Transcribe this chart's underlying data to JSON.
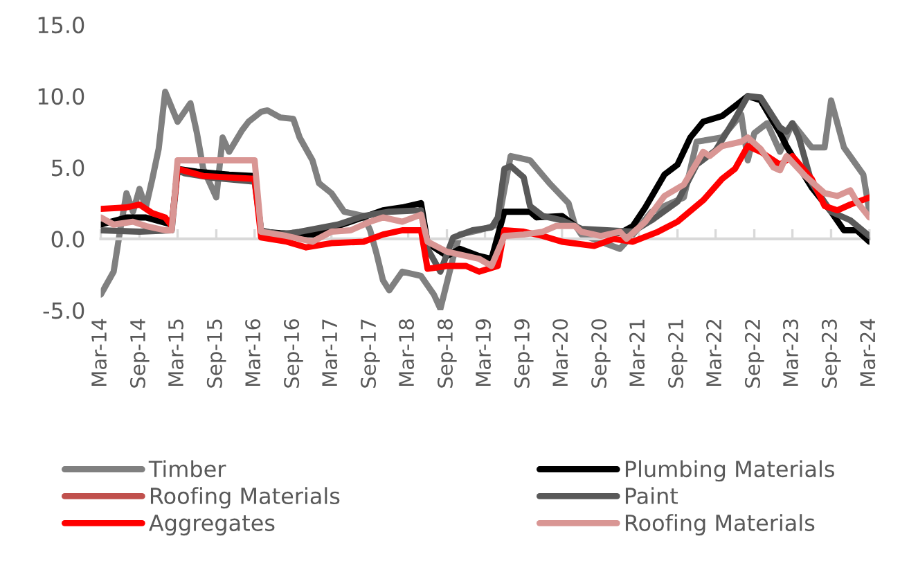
{
  "chart_data": {
    "type": "line",
    "xlim": [
      "2014-03",
      "2024-03"
    ],
    "ylim": [
      -5,
      15
    ],
    "yticks": [
      {
        "value": -5,
        "label": "-5.0"
      },
      {
        "value": 0,
        "label": "0.0"
      },
      {
        "value": 5,
        "label": "5.0"
      },
      {
        "value": 10,
        "label": "10.0"
      },
      {
        "value": 15,
        "label": "15.0"
      }
    ],
    "xticks": [
      {
        "value": "2014-03",
        "label": "Mar-14"
      },
      {
        "value": "2014-09",
        "label": "Sep-14"
      },
      {
        "value": "2015-03",
        "label": "Mar-15"
      },
      {
        "value": "2015-09",
        "label": "Sep-15"
      },
      {
        "value": "2016-03",
        "label": "Mar-16"
      },
      {
        "value": "2016-09",
        "label": "Sep-16"
      },
      {
        "value": "2017-03",
        "label": "Mar-17"
      },
      {
        "value": "2017-09",
        "label": "Sep-17"
      },
      {
        "value": "2018-03",
        "label": "Mar-18"
      },
      {
        "value": "2018-09",
        "label": "Sep-18"
      },
      {
        "value": "2019-03",
        "label": "Mar-19"
      },
      {
        "value": "2019-09",
        "label": "Sep-19"
      },
      {
        "value": "2020-03",
        "label": "Mar-20"
      },
      {
        "value": "2020-09",
        "label": "Sep-20"
      },
      {
        "value": "2021-03",
        "label": "Mar-21"
      },
      {
        "value": "2021-09",
        "label": "Sep-21"
      },
      {
        "value": "2022-03",
        "label": "Mar-22"
      },
      {
        "value": "2022-09",
        "label": "Sep-22"
      },
      {
        "value": "2023-03",
        "label": "Mar-23"
      },
      {
        "value": "2023-09",
        "label": "Sep-23"
      },
      {
        "value": "2024-03",
        "label": "Mar-24"
      }
    ],
    "legend": "bottom",
    "series": [
      {
        "name": "Timber",
        "color": "#808080",
        "x": [
          "2014-03",
          "2014-05",
          "2014-06",
          "2014-07",
          "2014-08",
          "2014-09",
          "2014-10",
          "2014-11",
          "2014-12",
          "2015-01",
          "2015-03",
          "2015-05",
          "2015-06",
          "2015-07",
          "2015-09",
          "2015-10",
          "2015-11",
          "2016-01",
          "2016-02",
          "2016-04",
          "2016-05",
          "2016-07",
          "2016-09",
          "2016-10",
          "2016-12",
          "2017-01",
          "2017-03",
          "2017-05",
          "2017-08",
          "2017-09",
          "2017-10",
          "2017-11",
          "2017-12",
          "2018-02",
          "2018-05",
          "2018-07",
          "2018-08",
          "2018-10",
          "2018-11",
          "2019-02",
          "2019-05",
          "2019-07",
          "2019-10",
          "2020-01",
          "2020-04",
          "2020-05",
          "2020-06",
          "2020-12",
          "2021-02",
          "2021-05",
          "2021-10",
          "2021-12",
          "2022-04",
          "2022-07",
          "2022-08",
          "2022-09",
          "2022-11",
          "2023-01",
          "2023-03",
          "2023-06",
          "2023-08",
          "2023-09",
          "2023-11",
          "2024-02",
          "2024-03"
        ],
        "values": [
          -3.9,
          -2.3,
          0.6,
          3.2,
          1.9,
          3.5,
          2.2,
          4.2,
          6.3,
          10.3,
          8.2,
          9.5,
          7.4,
          4.9,
          2.9,
          7.1,
          6.1,
          7.6,
          8.2,
          8.9,
          9.0,
          8.5,
          8.4,
          7.1,
          5.5,
          3.9,
          3.2,
          1.9,
          1.6,
          0.6,
          -1.0,
          -2.9,
          -3.6,
          -2.3,
          -2.6,
          -3.9,
          -4.9,
          -1.3,
          0.3,
          0.6,
          1.0,
          5.8,
          5.5,
          3.9,
          2.5,
          1.0,
          0.3,
          -0.7,
          0.3,
          1.9,
          2.9,
          6.8,
          7.1,
          8.7,
          5.5,
          7.4,
          8.1,
          6.1,
          8.1,
          6.4,
          6.4,
          9.7,
          6.4,
          4.5,
          1.9
        ]
      },
      {
        "name": "Plumbing Materials",
        "color": "#000000",
        "x": [
          "2014-03",
          "2014-07",
          "2014-10",
          "2015-02",
          "2015-03",
          "2015-06",
          "2015-11",
          "2016-03",
          "2016-04",
          "2016-07",
          "2016-12",
          "2017-06",
          "2017-11",
          "2018-02",
          "2018-05",
          "2018-06",
          "2018-09",
          "2018-11",
          "2019-02",
          "2019-04",
          "2019-06",
          "2019-10",
          "2019-11",
          "2020-03",
          "2020-06",
          "2020-12",
          "2021-02",
          "2021-04",
          "2021-07",
          "2021-09",
          "2021-11",
          "2022-01",
          "2022-04",
          "2022-06",
          "2022-08",
          "2022-10",
          "2023-01",
          "2023-02",
          "2023-03",
          "2023-06",
          "2023-09",
          "2023-11",
          "2024-01",
          "2024-03"
        ],
        "values": [
          1.0,
          1.5,
          1.5,
          1.0,
          4.9,
          4.7,
          4.5,
          4.4,
          0.5,
          0.4,
          0.3,
          1.2,
          2.0,
          2.2,
          2.5,
          -0.3,
          -1.2,
          -0.7,
          -1.2,
          -1.4,
          1.9,
          1.9,
          1.5,
          1.6,
          0.6,
          0.4,
          0.9,
          2.2,
          4.5,
          5.2,
          7.1,
          8.2,
          8.6,
          9.3,
          10.0,
          9.7,
          7.4,
          6.5,
          5.8,
          3.6,
          1.9,
          0.6,
          0.6,
          -0.2
        ]
      },
      {
        "name": "Roofing Materials",
        "color": "#c0504d"
      },
      {
        "name": "Paint",
        "color": "#595959",
        "x": [
          "2014-03",
          "2014-09",
          "2015-02",
          "2015-03",
          "2015-04",
          "2015-08",
          "2016-03",
          "2016-04",
          "2016-07",
          "2016-10",
          "2017-04",
          "2017-08",
          "2017-12",
          "2018-05",
          "2018-06",
          "2018-08",
          "2018-10",
          "2019-01",
          "2019-04",
          "2019-05",
          "2019-06",
          "2019-07",
          "2019-09",
          "2019-10",
          "2019-12",
          "2020-03",
          "2020-06",
          "2021-02",
          "2021-05",
          "2021-09",
          "2021-12",
          "2022-03",
          "2022-06",
          "2022-08",
          "2022-10",
          "2023-01",
          "2023-02",
          "2023-03",
          "2023-04",
          "2023-06",
          "2023-09",
          "2023-12",
          "2024-03"
        ],
        "values": [
          0.6,
          0.5,
          0.6,
          4.8,
          4.6,
          4.3,
          4.0,
          0.6,
          0.3,
          0.5,
          1.0,
          1.6,
          1.9,
          2.0,
          -0.7,
          -2.3,
          0.1,
          0.6,
          0.8,
          1.5,
          4.9,
          5.1,
          4.3,
          2.3,
          1.6,
          1.3,
          0.7,
          0.5,
          1.3,
          2.6,
          5.2,
          6.2,
          8.4,
          10.0,
          9.9,
          7.8,
          7.5,
          8.1,
          7.1,
          3.9,
          1.9,
          1.3,
          0.2
        ]
      },
      {
        "name": "Aggregates",
        "color": "#ff0000",
        "x": [
          "2014-03",
          "2014-07",
          "2014-09",
          "2014-11",
          "2015-01",
          "2015-02",
          "2015-03",
          "2015-07",
          "2016-03",
          "2016-04",
          "2016-08",
          "2016-11",
          "2017-03",
          "2017-08",
          "2017-11",
          "2018-02",
          "2018-05",
          "2018-06",
          "2018-09",
          "2018-12",
          "2019-02",
          "2019-05",
          "2019-06",
          "2019-09",
          "2019-12",
          "2020-03",
          "2020-08",
          "2020-11",
          "2021-02",
          "2021-06",
          "2021-09",
          "2022-01",
          "2022-04",
          "2022-06",
          "2022-08",
          "2022-10",
          "2023-01",
          "2023-03",
          "2023-06",
          "2023-08",
          "2023-10",
          "2023-12",
          "2024-03"
        ],
        "values": [
          2.1,
          2.2,
          2.4,
          1.8,
          1.5,
          0.9,
          4.9,
          4.4,
          4.2,
          0.1,
          -0.2,
          -0.6,
          -0.3,
          -0.2,
          0.3,
          0.6,
          0.6,
          -2.1,
          -1.9,
          -1.9,
          -2.3,
          -1.9,
          0.6,
          0.5,
          0.2,
          -0.2,
          -0.5,
          0.0,
          -0.2,
          0.5,
          1.2,
          2.7,
          4.2,
          4.9,
          6.5,
          6.1,
          5.2,
          5.8,
          4.2,
          2.3,
          2.0,
          2.4,
          2.9
        ]
      },
      {
        "name": "Roofing Materials",
        "color": "#d99694",
        "x": [
          "2014-03",
          "2014-05",
          "2014-08",
          "2014-10",
          "2015-01",
          "2015-02",
          "2015-03",
          "2016-03",
          "2016-04",
          "2016-08",
          "2016-12",
          "2017-03",
          "2017-06",
          "2017-09",
          "2017-11",
          "2018-02",
          "2018-05",
          "2018-06",
          "2018-09",
          "2018-11",
          "2019-02",
          "2019-04",
          "2019-06",
          "2019-09",
          "2019-12",
          "2020-02",
          "2020-05",
          "2020-06",
          "2020-09",
          "2020-12",
          "2021-01",
          "2021-04",
          "2021-07",
          "2021-10",
          "2022-01",
          "2022-02",
          "2022-04",
          "2022-07",
          "2022-08",
          "2022-10",
          "2022-12",
          "2023-01",
          "2023-02",
          "2023-05",
          "2023-08",
          "2023-10",
          "2023-12",
          "2024-01",
          "2024-03"
        ],
        "values": [
          1.5,
          1.0,
          1.2,
          0.9,
          0.6,
          0.6,
          5.5,
          5.5,
          0.5,
          0.2,
          -0.2,
          0.5,
          0.6,
          1.2,
          1.5,
          1.2,
          1.7,
          -0.2,
          -0.9,
          -1.1,
          -1.4,
          -1.9,
          0.2,
          0.3,
          0.5,
          0.9,
          0.9,
          0.5,
          0.2,
          0.5,
          0.0,
          1.2,
          3.0,
          3.8,
          6.1,
          5.8,
          6.5,
          6.8,
          7.1,
          6.3,
          5.0,
          4.8,
          5.8,
          4.4,
          3.2,
          3.0,
          3.4,
          2.6,
          1.5
        ]
      }
    ]
  }
}
